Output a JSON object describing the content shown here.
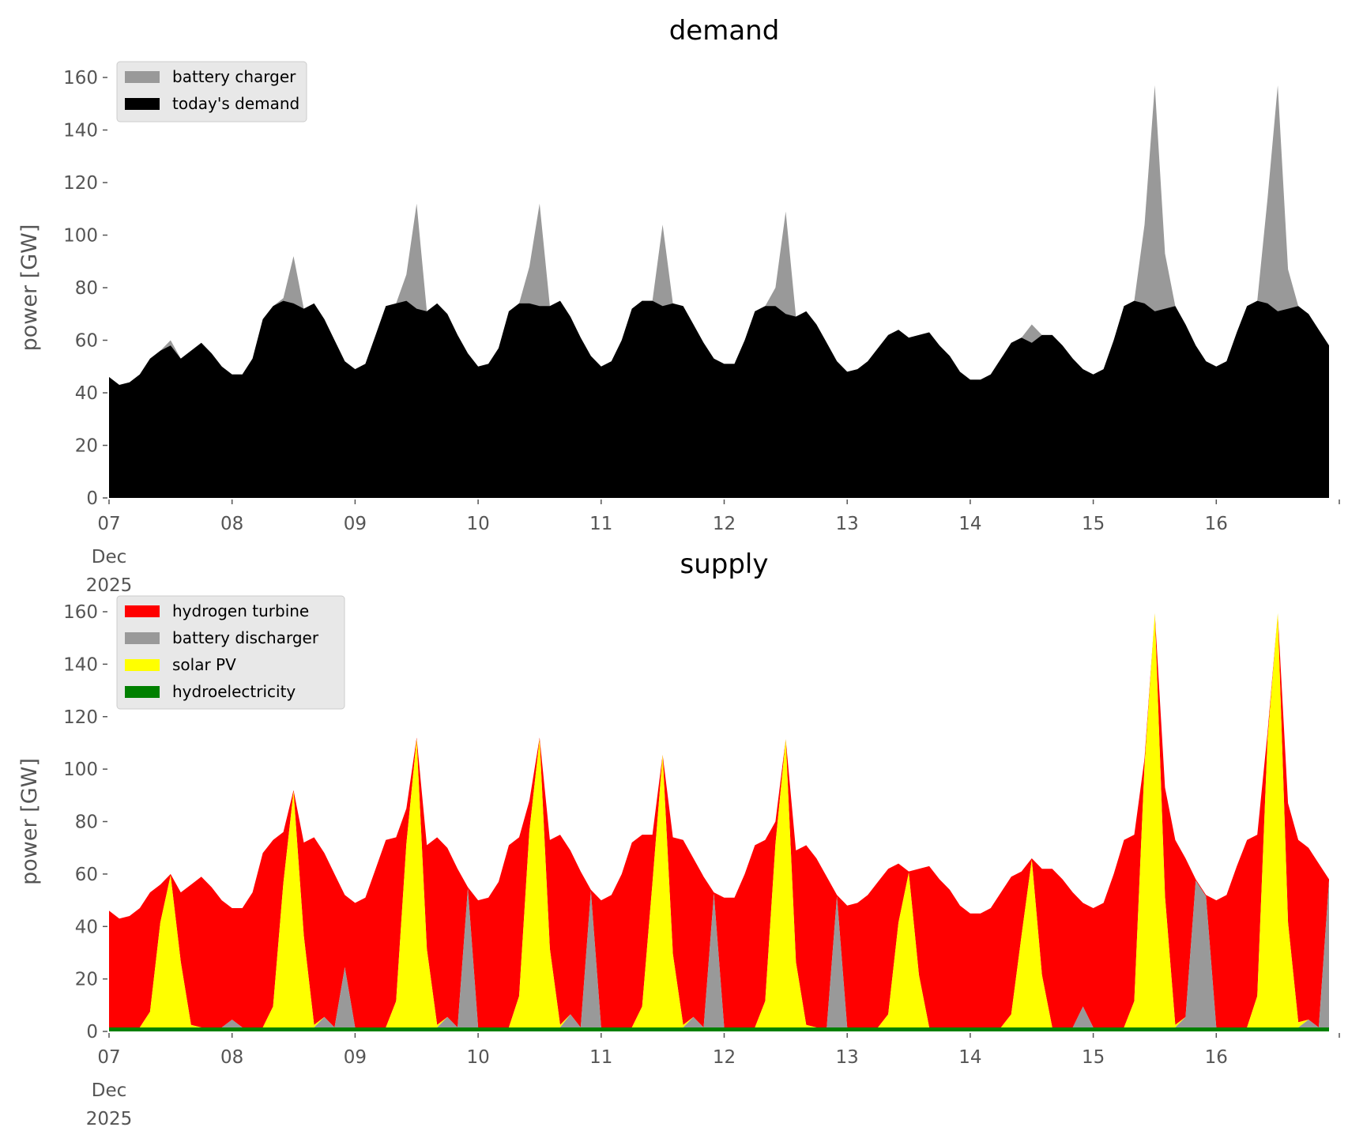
{
  "chart_data": [
    {
      "type": "area",
      "title": "demand",
      "ylabel": "power [GW]",
      "xlabel": "",
      "ylim": [
        0,
        165
      ],
      "yticks": [
        0,
        20,
        40,
        60,
        80,
        100,
        120,
        140,
        160
      ],
      "x_unit": "hours since 2025-12-07 00:00",
      "x_step_hours": 2,
      "xlim_hours": [
        0,
        240
      ],
      "xtick_labels": [
        "07",
        "08",
        "09",
        "10",
        "11",
        "12",
        "13",
        "14",
        "15",
        "16"
      ],
      "xtick_sublabels": [
        "Dec",
        "2025"
      ],
      "grid": false,
      "legend_position": "top-left",
      "series": [
        {
          "name": "battery charger",
          "color": "#999999",
          "stacked_on": "today's demand",
          "sparse_points": [
            [
              12,
              2
            ],
            [
              34,
              1
            ],
            [
              36,
              18
            ],
            [
              58,
              10
            ],
            [
              60,
              40
            ],
            [
              82,
              14
            ],
            [
              84,
              39
            ],
            [
              108,
              31
            ],
            [
              130,
              7
            ],
            [
              132,
              39
            ],
            [
              180,
              7
            ],
            [
              202,
              30
            ],
            [
              204,
              86
            ],
            [
              206,
              21
            ],
            [
              226,
              40
            ],
            [
              228,
              86
            ],
            [
              230,
              15
            ]
          ]
        },
        {
          "name": "today's demand",
          "color": "#000000",
          "values": [
            46,
            43,
            44,
            47,
            53,
            56,
            58,
            53,
            56,
            59,
            55,
            50,
            47,
            47,
            53,
            68,
            73,
            75,
            74,
            72,
            74,
            68,
            60,
            52,
            49,
            51,
            62,
            73,
            74,
            75,
            72,
            71,
            74,
            70,
            62,
            55,
            50,
            51,
            57,
            71,
            74,
            74,
            73,
            73,
            75,
            69,
            61,
            54,
            50,
            52,
            60,
            72,
            75,
            75,
            73,
            74,
            73,
            66,
            59,
            53,
            51,
            51,
            60,
            71,
            73,
            73,
            70,
            69,
            71,
            66,
            59,
            52,
            48,
            49,
            52,
            57,
            62,
            64,
            61,
            62,
            63,
            58,
            54,
            48,
            45,
            45,
            47,
            53,
            59,
            61,
            59,
            62,
            62,
            58,
            53,
            49,
            47,
            49,
            60,
            73,
            75,
            74,
            71,
            72,
            73,
            66,
            58,
            52,
            50,
            52,
            63,
            73,
            75,
            74,
            71,
            72,
            73,
            70,
            64,
            58
          ]
        }
      ]
    },
    {
      "type": "area",
      "title": "supply",
      "ylabel": "power [GW]",
      "xlabel": "",
      "ylim": [
        0,
        165
      ],
      "yticks": [
        0,
        20,
        40,
        60,
        80,
        100,
        120,
        140,
        160
      ],
      "x_unit": "hours since 2025-12-07 00:00",
      "x_step_hours": 2,
      "xlim_hours": [
        0,
        240
      ],
      "xtick_labels": [
        "07",
        "08",
        "09",
        "10",
        "11",
        "12",
        "13",
        "14",
        "15",
        "16"
      ],
      "xtick_sublabels": [
        "Dec",
        "2025"
      ],
      "grid": false,
      "legend_position": "top-left",
      "stack_order_bottom_up": [
        "hydroelectricity",
        "battery discharger",
        "solar PV",
        "hydrogen turbine"
      ],
      "series": [
        {
          "name": "hydrogen turbine",
          "color": "#ff0000",
          "note": "remainder up to total supply (= demand + battery charger)"
        },
        {
          "name": "battery discharger",
          "color": "#999999",
          "sparse_points": [
            [
              24,
              3
            ],
            [
              42,
              4
            ],
            [
              46,
              23
            ],
            [
              66,
              4
            ],
            [
              70,
              53
            ],
            [
              90,
              5
            ],
            [
              94,
              52
            ],
            [
              114,
              4
            ],
            [
              118,
              51
            ],
            [
              142,
              50
            ],
            [
              190,
              8
            ],
            [
              210,
              4
            ],
            [
              212,
              56
            ],
            [
              214,
              50
            ],
            [
              234,
              3
            ],
            [
              238,
              56
            ]
          ]
        },
        {
          "name": "solar PV",
          "color": "#ffff00",
          "sparse_points": [
            [
              8,
              6
            ],
            [
              10,
              40
            ],
            [
              12,
              58
            ],
            [
              14,
              25
            ],
            [
              16,
              1
            ],
            [
              32,
              8
            ],
            [
              34,
              55
            ],
            [
              36,
              90
            ],
            [
              38,
              35
            ],
            [
              40,
              1
            ],
            [
              56,
              10
            ],
            [
              58,
              70
            ],
            [
              60,
              110
            ],
            [
              62,
              30
            ],
            [
              64,
              1
            ],
            [
              80,
              12
            ],
            [
              82,
              75
            ],
            [
              84,
              110
            ],
            [
              86,
              30
            ],
            [
              88,
              1
            ],
            [
              104,
              8
            ],
            [
              106,
              55
            ],
            [
              108,
              104
            ],
            [
              110,
              28
            ],
            [
              112,
              1
            ],
            [
              128,
              10
            ],
            [
              130,
              70
            ],
            [
              132,
              110
            ],
            [
              134,
              25
            ],
            [
              136,
              1
            ],
            [
              152,
              5
            ],
            [
              154,
              40
            ],
            [
              156,
              59
            ],
            [
              158,
              20
            ],
            [
              176,
              5
            ],
            [
              178,
              35
            ],
            [
              180,
              64
            ],
            [
              182,
              20
            ],
            [
              200,
              10
            ],
            [
              202,
              100
            ],
            [
              204,
              158
            ],
            [
              206,
              50
            ],
            [
              208,
              1
            ],
            [
              224,
              12
            ],
            [
              226,
              110
            ],
            [
              228,
              158
            ],
            [
              230,
              40
            ],
            [
              232,
              2
            ]
          ]
        },
        {
          "name": "hydroelectricity",
          "color": "#008000",
          "constant_value": 1.5
        }
      ]
    }
  ]
}
